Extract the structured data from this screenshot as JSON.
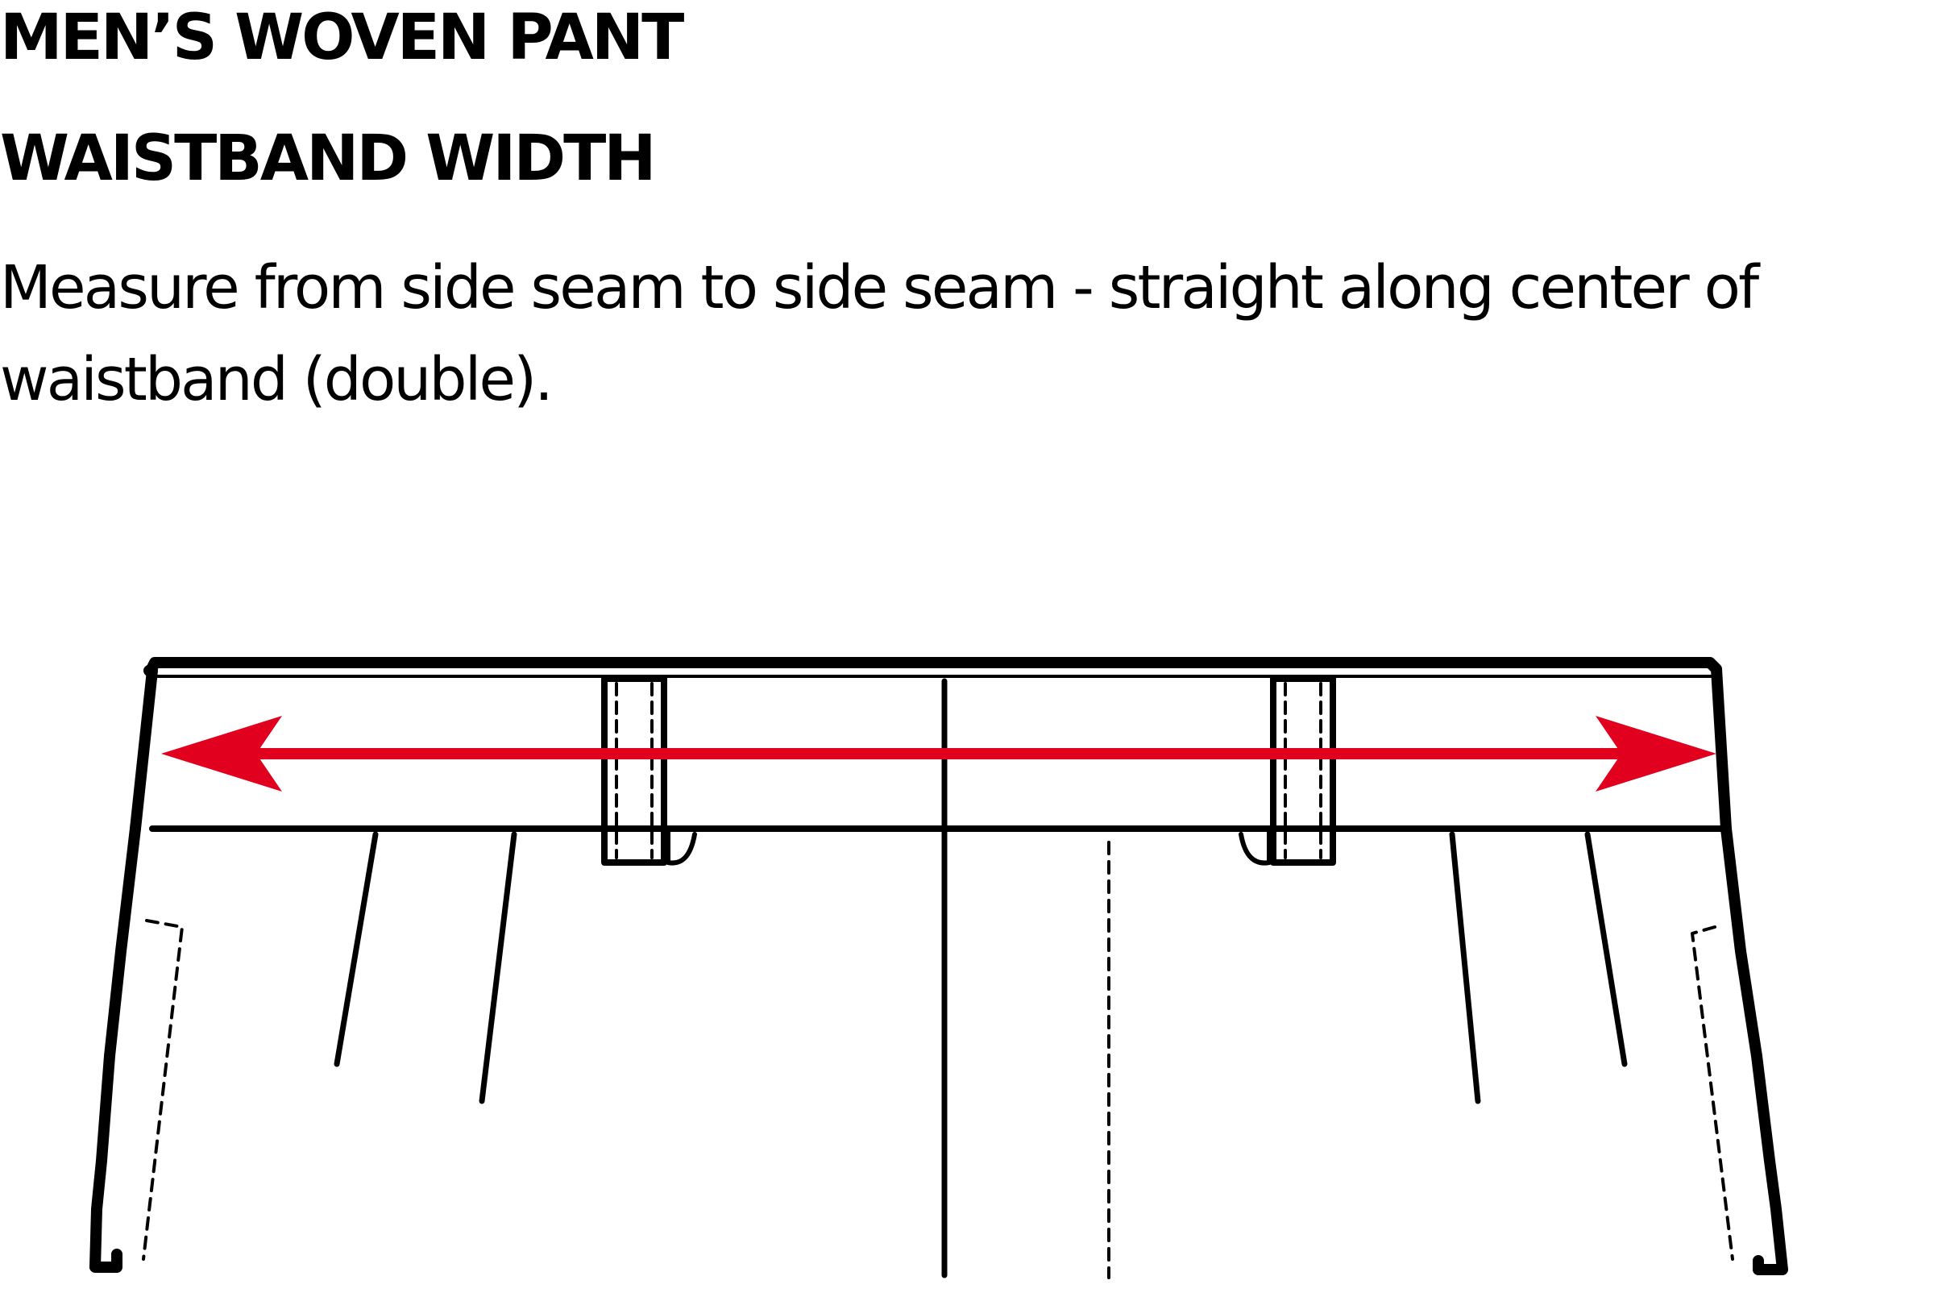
{
  "title": "MEN’S WOVEN PANT",
  "subtitle": "WAISTBAND WIDTH",
  "description_lines": [
    "Measure from side seam to side seam - straight along center of",
    "waistband (double)."
  ],
  "colors": {
    "arrow": "#e1001e",
    "line": "#000000",
    "background": "#ffffff"
  }
}
